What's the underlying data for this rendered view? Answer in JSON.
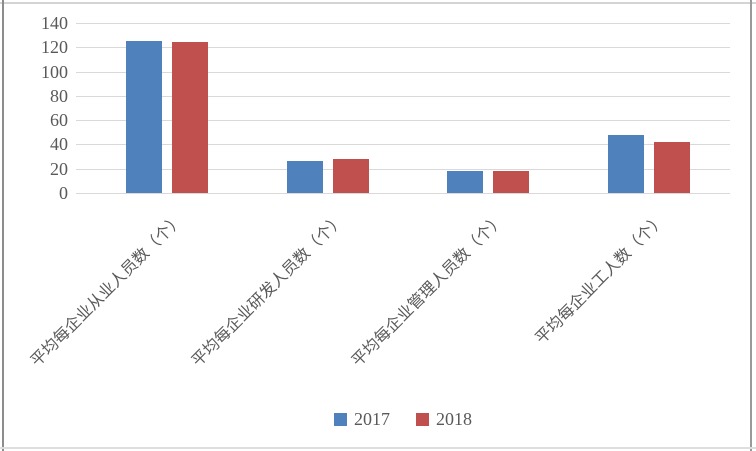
{
  "chart_data": {
    "type": "bar",
    "categories": [
      "平均每企业从业人员数（个）",
      "平均每企业研发人员数（个）",
      "平均每企业管理人员数（个）",
      "平均每企业工人数（个）"
    ],
    "series": [
      {
        "name": "2017",
        "color": "#4F81BD",
        "values": [
          125,
          26,
          18,
          48
        ]
      },
      {
        "name": "2018",
        "color": "#C0504D",
        "values": [
          124,
          28,
          18,
          42
        ]
      }
    ],
    "ylim": [
      0,
      140
    ],
    "yticks": [
      0,
      20,
      40,
      60,
      80,
      100,
      120,
      140
    ],
    "title": "",
    "xlabel": "",
    "ylabel": "",
    "grid": true,
    "gridline_color": "#D9D9D9",
    "tick_label_color": "#595959",
    "legend_position": "bottom",
    "legend_entries": [
      "2017",
      "2018"
    ]
  },
  "frame": {
    "border_left_color": "#8c8c8c",
    "border_top_color": "#d4d4d4",
    "border_right_color": "#9a9a9a",
    "border_bottom_color": "#dedede"
  }
}
